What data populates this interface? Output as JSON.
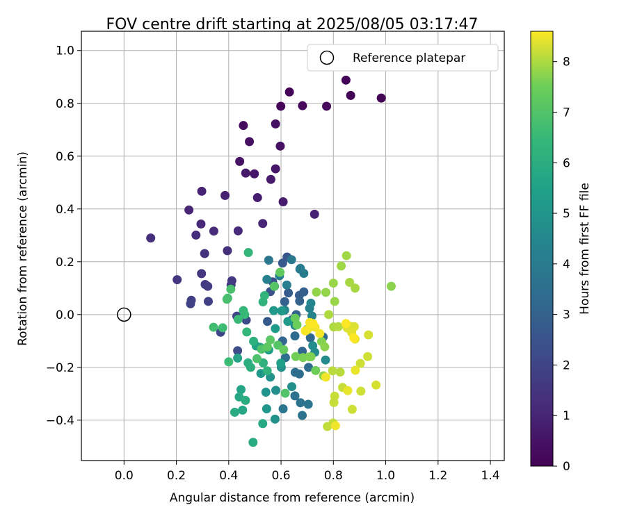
{
  "chart_data": {
    "type": "scatter",
    "title": "FOV centre drift starting at 2025/08/05 03:17:47",
    "xlabel": "Angular distance from reference (arcmin)",
    "ylabel": "Rotation from reference (arcmin)",
    "xlim": [
      -0.163,
      1.453
    ],
    "ylim": [
      -0.553,
      1.073
    ],
    "x_ticks": [
      "0.0",
      "0.2",
      "0.4",
      "0.6",
      "0.8",
      "1.0",
      "1.2",
      "1.4"
    ],
    "y_ticks": [
      "−0.4",
      "−0.2",
      "0.0",
      "0.2",
      "0.4",
      "0.6",
      "0.8",
      "1.0"
    ],
    "grid": true,
    "legend": {
      "position": "upper-right",
      "label": "Reference platepar"
    },
    "reference_point": {
      "x": 0.0,
      "y": 0.0
    },
    "colorbar": {
      "label": "Hours from first FF file",
      "colormap": "viridis",
      "range": [
        0,
        8.6
      ],
      "ticks": [
        "0",
        "1",
        "2",
        "3",
        "4",
        "5",
        "6",
        "7",
        "8"
      ]
    },
    "points": [
      [
        0.632,
        0.843,
        0.05
      ],
      [
        0.848,
        0.888,
        0.05
      ],
      [
        0.866,
        0.83,
        0.1
      ],
      [
        0.983,
        0.82,
        0.1
      ],
      [
        0.599,
        0.789,
        0.15
      ],
      [
        0.682,
        0.791,
        0.2
      ],
      [
        0.774,
        0.789,
        0.25
      ],
      [
        0.456,
        0.716,
        0.3
      ],
      [
        0.579,
        0.722,
        0.35
      ],
      [
        0.479,
        0.655,
        0.4
      ],
      [
        0.597,
        0.638,
        0.45
      ],
      [
        0.442,
        0.58,
        0.5
      ],
      [
        0.579,
        0.552,
        0.55
      ],
      [
        0.498,
        0.533,
        0.6
      ],
      [
        0.465,
        0.536,
        0.65
      ],
      [
        0.561,
        0.512,
        0.7
      ],
      [
        0.608,
        0.427,
        0.75
      ],
      [
        0.51,
        0.443,
        0.8
      ],
      [
        0.386,
        0.451,
        0.85
      ],
      [
        0.728,
        0.38,
        0.9
      ],
      [
        0.297,
        0.467,
        0.95
      ],
      [
        0.248,
        0.396,
        1.0
      ],
      [
        0.53,
        0.345,
        1.05
      ],
      [
        0.294,
        0.343,
        1.1
      ],
      [
        0.436,
        0.317,
        1.15
      ],
      [
        0.343,
        0.316,
        1.2
      ],
      [
        0.275,
        0.301,
        1.25
      ],
      [
        0.102,
        0.29,
        1.3
      ],
      [
        0.395,
        0.242,
        1.35
      ],
      [
        0.308,
        0.231,
        1.4
      ],
      [
        0.296,
        0.155,
        1.5
      ],
      [
        0.203,
        0.132,
        1.55
      ],
      [
        0.412,
        0.128,
        1.6
      ],
      [
        0.31,
        0.114,
        1.65
      ],
      [
        0.32,
        0.107,
        1.7
      ],
      [
        0.409,
        0.112,
        1.75
      ],
      [
        0.257,
        0.054,
        1.8
      ],
      [
        0.322,
        0.05,
        1.85
      ],
      [
        0.254,
        0.041,
        1.9
      ],
      [
        0.431,
        -0.006,
        2.0
      ],
      [
        0.369,
        -0.067,
        2.1
      ],
      [
        0.467,
        -0.021,
        2.2
      ],
      [
        0.434,
        -0.137,
        2.3
      ],
      [
        0.568,
        0.124,
        2.4
      ],
      [
        0.559,
        0.087,
        2.5
      ],
      [
        0.623,
        0.218,
        2.6
      ],
      [
        0.606,
        0.195,
        2.7
      ],
      [
        0.548,
        -0.026,
        2.75
      ],
      [
        0.628,
        0.082,
        2.8
      ],
      [
        0.67,
        0.073,
        2.85
      ],
      [
        0.687,
        0.086,
        2.9
      ],
      [
        0.614,
        0.049,
        2.95
      ],
      [
        0.671,
        0.051,
        3.0
      ],
      [
        0.658,
        0.0,
        3.05
      ],
      [
        0.641,
        -0.02,
        3.1
      ],
      [
        0.606,
        -0.1,
        3.15
      ],
      [
        0.681,
        -0.139,
        3.2
      ],
      [
        0.712,
        -0.088,
        3.25
      ],
      [
        0.761,
        -0.085,
        3.3
      ],
      [
        0.653,
        -0.081,
        3.35
      ],
      [
        0.705,
        -0.2,
        3.4
      ],
      [
        0.67,
        -0.225,
        3.45
      ],
      [
        0.654,
        -0.219,
        3.5
      ],
      [
        0.617,
        -0.163,
        3.55
      ],
      [
        0.653,
        -0.308,
        3.6
      ],
      [
        0.674,
        -0.334,
        3.65
      ],
      [
        0.681,
        -0.382,
        3.7
      ],
      [
        0.704,
        -0.34,
        3.75
      ],
      [
        0.608,
        -0.357,
        3.8
      ],
      [
        0.553,
        0.206,
        3.85
      ],
      [
        0.64,
        0.208,
        3.9
      ],
      [
        0.672,
        0.172,
        3.95
      ],
      [
        0.674,
        0.175,
        4.0
      ],
      [
        0.687,
        0.156,
        4.05
      ],
      [
        0.594,
        0.147,
        4.1
      ],
      [
        0.622,
        0.112,
        4.15
      ],
      [
        0.575,
        0.107,
        4.2
      ],
      [
        0.546,
        0.133,
        4.25
      ],
      [
        0.709,
        0.024,
        4.3
      ],
      [
        0.718,
        -0.005,
        4.35
      ],
      [
        0.714,
        0.043,
        4.4
      ],
      [
        0.614,
        0.017,
        4.45
      ],
      [
        0.653,
        -0.041,
        4.5
      ],
      [
        0.7,
        -0.056,
        4.55
      ],
      [
        0.77,
        -0.172,
        4.6
      ],
      [
        0.729,
        -0.143,
        4.65
      ],
      [
        0.721,
        -0.118,
        4.7
      ],
      [
        0.641,
        -0.273,
        4.75
      ],
      [
        0.58,
        -0.287,
        4.8
      ],
      [
        0.577,
        -0.396,
        4.85
      ],
      [
        0.601,
        -0.2,
        4.9
      ],
      [
        0.559,
        -0.237,
        4.95
      ],
      [
        0.542,
        -0.294,
        5.0
      ],
      [
        0.545,
        -0.357,
        5.05
      ],
      [
        0.523,
        -0.223,
        5.1
      ],
      [
        0.603,
        0.014,
        5.15
      ],
      [
        0.572,
        0.015,
        5.2
      ],
      [
        0.578,
        -0.053,
        5.25
      ],
      [
        0.626,
        -0.026,
        5.3
      ],
      [
        0.553,
        -0.134,
        5.35
      ],
      [
        0.599,
        -0.184,
        5.4
      ],
      [
        0.521,
        -0.124,
        5.45
      ],
      [
        0.505,
        -0.119,
        5.5
      ],
      [
        0.434,
        -0.165,
        5.6
      ],
      [
        0.447,
        -0.284,
        5.65
      ],
      [
        0.453,
        -0.362,
        5.7
      ],
      [
        0.44,
        -0.312,
        5.75
      ],
      [
        0.53,
        -0.413,
        5.8
      ],
      [
        0.493,
        -0.484,
        5.85
      ],
      [
        0.423,
        -0.37,
        5.9
      ],
      [
        0.464,
        -0.325,
        5.95
      ],
      [
        0.474,
        -0.183,
        6.0
      ],
      [
        0.484,
        -0.2,
        6.05
      ],
      [
        0.495,
        -0.101,
        6.1
      ],
      [
        0.532,
        -0.183,
        6.15
      ],
      [
        0.547,
        -0.213,
        6.2
      ],
      [
        0.531,
        0.048,
        6.25
      ],
      [
        0.537,
        0.072,
        6.3
      ],
      [
        0.475,
        0.235,
        6.35
      ],
      [
        0.469,
        -0.066,
        6.4
      ],
      [
        0.456,
        0.015,
        6.45
      ],
      [
        0.461,
        0.0,
        6.5
      ],
      [
        0.436,
        -0.018,
        6.55
      ],
      [
        0.4,
        -0.179,
        6.6
      ],
      [
        0.377,
        -0.05,
        6.65
      ],
      [
        0.342,
        -0.048,
        6.7
      ],
      [
        0.396,
        0.062,
        6.75
      ],
      [
        0.393,
        0.058,
        6.8
      ],
      [
        0.408,
        0.096,
        6.85
      ],
      [
        0.508,
        -0.167,
        6.9
      ],
      [
        0.525,
        -0.131,
        6.95
      ],
      [
        0.616,
        -0.298,
        7.0
      ],
      [
        0.588,
        -0.116,
        7.05
      ],
      [
        0.574,
        0.107,
        7.1
      ],
      [
        0.559,
        -0.096,
        7.15
      ],
      [
        0.548,
        -0.123,
        7.2
      ],
      [
        0.596,
        0.16,
        7.3
      ],
      [
        0.61,
        -0.133,
        7.35
      ],
      [
        0.654,
        -0.014,
        7.4
      ],
      [
        0.661,
        -0.039,
        7.45
      ],
      [
        0.732,
        -0.212,
        7.5
      ],
      [
        0.656,
        -0.159,
        7.55
      ],
      [
        0.684,
        -0.163,
        7.6
      ],
      [
        0.708,
        -0.16,
        7.65
      ],
      [
        0.714,
        -0.16,
        7.65
      ],
      [
        0.755,
        -0.102,
        7.7
      ],
      [
        0.767,
        -0.122,
        7.75
      ],
      [
        0.762,
        -0.232,
        7.75
      ],
      [
        0.771,
        0.084,
        7.8
      ],
      [
        0.735,
        0.085,
        7.8
      ],
      [
        0.805,
        0.05,
        7.85
      ],
      [
        0.8,
        0.119,
        7.85
      ],
      [
        0.83,
        0.184,
        7.9
      ],
      [
        0.85,
        0.223,
        7.9
      ],
      [
        0.862,
        0.122,
        7.95
      ],
      [
        0.883,
        0.1,
        7.95
      ],
      [
        0.782,
        0.0,
        8.0
      ],
      [
        0.801,
        -0.047,
        8.0
      ],
      [
        0.819,
        -0.046,
        8.05
      ],
      [
        0.797,
        -0.213,
        8.1
      ],
      [
        0.826,
        -0.218,
        8.1
      ],
      [
        0.777,
        -0.424,
        8.15
      ],
      [
        0.799,
        -0.411,
        8.15
      ],
      [
        0.805,
        -0.309,
        8.2
      ],
      [
        0.802,
        -0.333,
        8.2
      ],
      [
        0.835,
        -0.276,
        8.2
      ],
      [
        0.872,
        -0.359,
        8.25
      ],
      [
        0.905,
        -0.29,
        8.25
      ],
      [
        0.903,
        -0.185,
        8.25
      ],
      [
        0.931,
        -0.159,
        8.25
      ],
      [
        0.934,
        -0.077,
        8.3
      ],
      [
        0.963,
        -0.267,
        8.3
      ],
      [
        0.864,
        -0.045,
        8.3
      ],
      [
        0.853,
        -0.051,
        8.35
      ],
      [
        0.88,
        -0.046,
        8.35
      ],
      [
        0.87,
        -0.068,
        8.4
      ],
      [
        0.883,
        -0.093,
        8.45
      ],
      [
        0.884,
        -0.211,
        8.45
      ],
      [
        0.855,
        -0.288,
        8.45
      ],
      [
        0.808,
        -0.421,
        8.5
      ],
      [
        0.771,
        -0.237,
        8.5
      ],
      [
        0.73,
        -0.048,
        8.5
      ],
      [
        0.701,
        -0.057,
        8.5
      ],
      [
        0.748,
        -0.072,
        8.55
      ],
      [
        0.71,
        -0.03,
        8.55
      ],
      [
        0.693,
        -0.062,
        8.55
      ],
      [
        0.722,
        -0.034,
        8.6
      ],
      [
        0.848,
        -0.034,
        8.6
      ],
      [
        0.878,
        -0.088,
        8.6
      ],
      [
        1.021,
        0.107,
        7.75
      ]
    ]
  }
}
